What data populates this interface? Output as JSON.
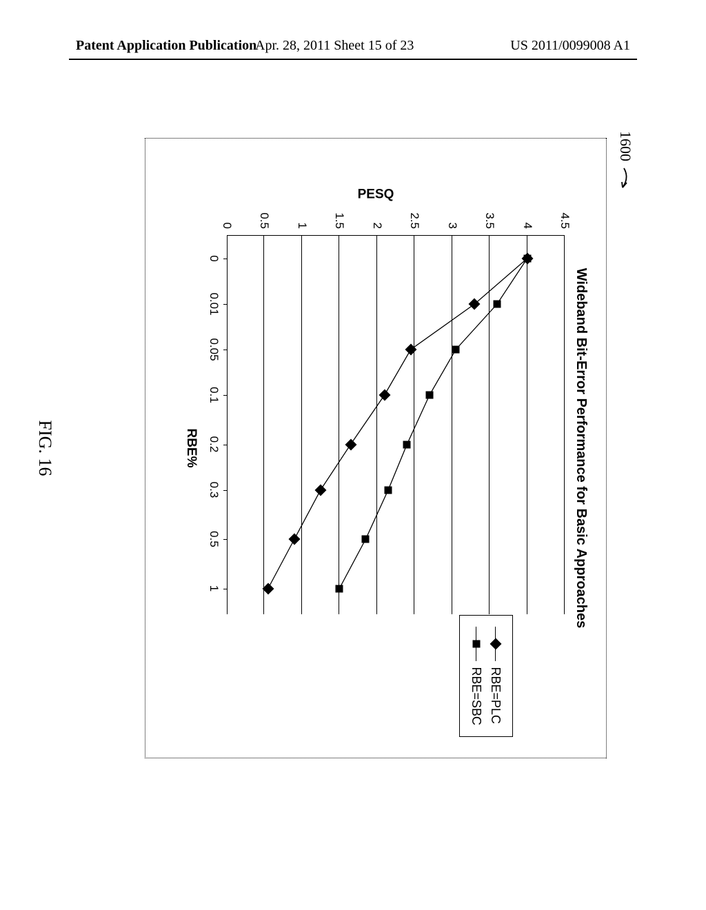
{
  "header": {
    "left": "Patent Application Publication",
    "mid": "Apr. 28, 2011  Sheet 15 of 23",
    "right": "US 2011/0099008 A1"
  },
  "refnum": "1600",
  "figure_label": "FIG. 16",
  "chart": {
    "type": "line",
    "title": "Wideband Bit-Error Performance for Basic Approaches",
    "xlabel": "RBE%",
    "ylabel": "PESQ",
    "ylim": [
      0,
      4.5
    ],
    "ytick_step": 0.5,
    "yticks": [
      0,
      0.5,
      1,
      1.5,
      2,
      2.5,
      3,
      3.5,
      4,
      4.5
    ],
    "xticks_labels": [
      "0",
      "0.01",
      "0.05",
      "0.1",
      "0.2",
      "0.3",
      "0.5",
      "1"
    ],
    "xticks_pos_pct": [
      6,
      18,
      30,
      42,
      55,
      67,
      80,
      93
    ],
    "series": [
      {
        "name": "RBE=PLC",
        "marker": "diamond",
        "points_y": [
          4.0,
          3.3,
          2.45,
          2.1,
          1.65,
          1.25,
          0.9,
          0.55
        ]
      },
      {
        "name": "RBE=SBC",
        "marker": "square",
        "points_y": [
          4.0,
          3.6,
          3.05,
          2.7,
          2.4,
          2.15,
          1.85,
          1.5
        ]
      }
    ],
    "line_color": "#000000",
    "marker_color": "#000000",
    "background_color": "#ffffff",
    "frame_style": "dotted"
  }
}
